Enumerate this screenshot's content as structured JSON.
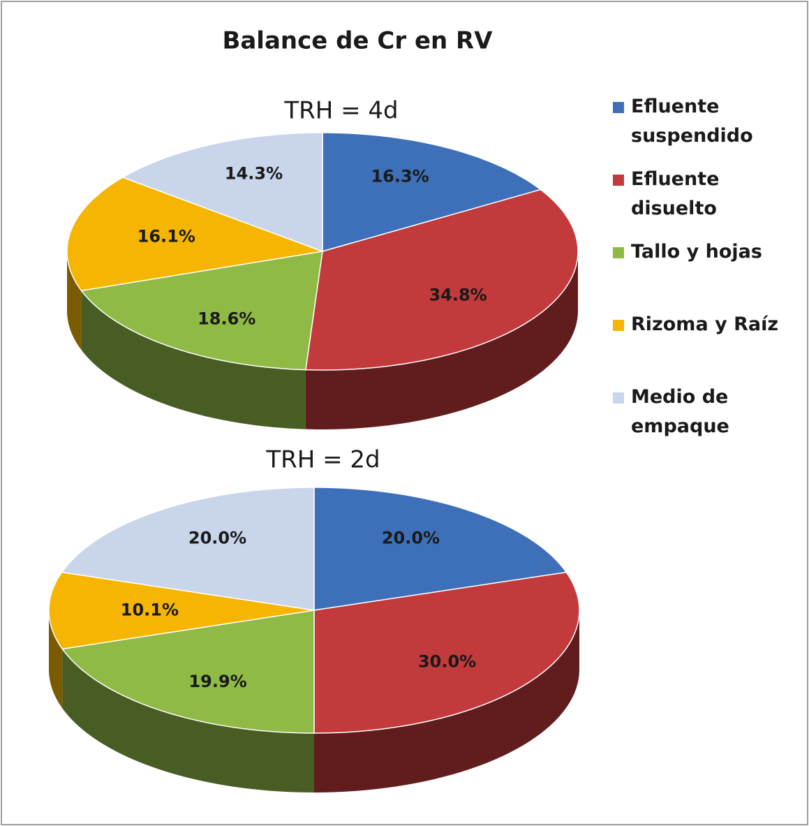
{
  "title": "Balance de Cr en RV",
  "chart_data": [
    {
      "type": "pie",
      "title": "TRH = 4d",
      "legend": "right",
      "categories": [
        "Efluente suspendido",
        "Efluente disuelto",
        "Tallo y hojas",
        "Rizoma y Raíz",
        "Medio de empaque"
      ],
      "colors": [
        "#3d70b8",
        "#c23a3b",
        "#8fba45",
        "#f6b500",
        "#c8d5ea"
      ],
      "values": [
        16.3,
        34.8,
        18.6,
        16.1,
        14.3
      ],
      "value_labels": [
        "16.3%",
        "34.8%",
        "18.6%",
        "16.1%",
        "14.3%"
      ]
    },
    {
      "type": "pie",
      "title": "TRH = 2d",
      "values": [
        20.0,
        30.0,
        19.9,
        10.1,
        20.0
      ],
      "value_labels": [
        "20.0%",
        "30.0%",
        "19.9%",
        "10.1%",
        "20.0%"
      ]
    }
  ]
}
